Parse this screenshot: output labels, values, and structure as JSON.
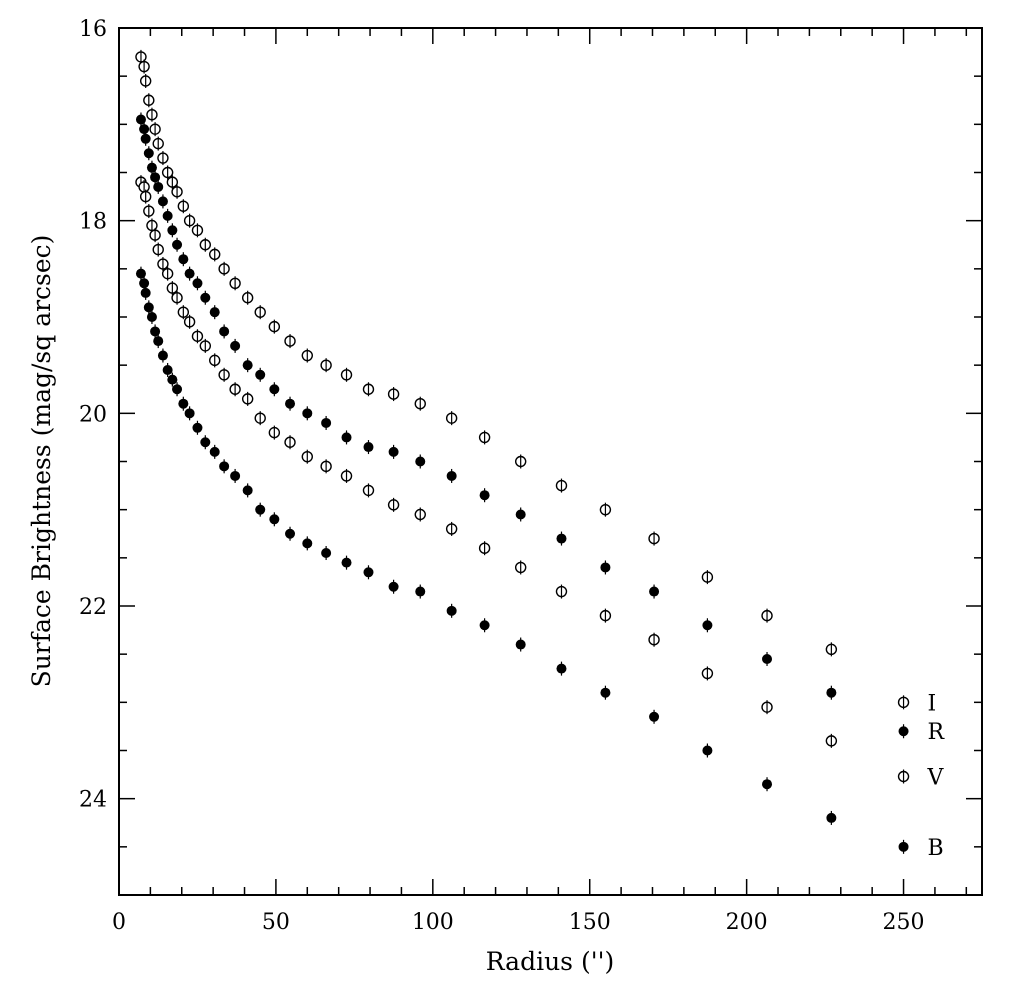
{
  "chart_data": {
    "type": "scatter",
    "title": "",
    "xlabel": "Radius ('')",
    "ylabel": "Surface Brightness (mag/sq arcsec)",
    "xlim": [
      0,
      275
    ],
    "ylim": [
      16,
      25
    ],
    "y_inverted": true,
    "grid": false,
    "legend_position": "bottom-right",
    "x_ticks": [
      0,
      50,
      100,
      150,
      200,
      250
    ],
    "x_tick_labels": [
      "0",
      "50",
      "100",
      "150",
      "200",
      "250"
    ],
    "y_ticks": [
      16,
      18,
      20,
      22,
      24
    ],
    "y_tick_labels": [
      "16",
      "18",
      "20",
      "22",
      "24"
    ],
    "series": [
      {
        "name": "I",
        "marker": "open-circle",
        "x": [
          7,
          8,
          8.5,
          9.5,
          10.5,
          11.5,
          12.5,
          14,
          15.5,
          17,
          18.5,
          20.5,
          22.5,
          25,
          27.5,
          30.5,
          33.5,
          37,
          41,
          45,
          49.5,
          54.5,
          60,
          66,
          72.5,
          79.5,
          87.5,
          96,
          106,
          116.5,
          128,
          141,
          155,
          170.5,
          187.5,
          206.5,
          227
        ],
        "y": [
          16.3,
          16.4,
          16.55,
          16.75,
          16.9,
          17.05,
          17.2,
          17.35,
          17.5,
          17.6,
          17.7,
          17.85,
          18.0,
          18.1,
          18.25,
          18.35,
          18.5,
          18.65,
          18.8,
          18.95,
          19.1,
          19.25,
          19.4,
          19.5,
          19.6,
          19.75,
          19.8,
          19.9,
          20.05,
          20.25,
          20.5,
          20.75,
          21.0,
          21.3,
          21.7,
          22.1,
          22.45
        ]
      },
      {
        "name": "R",
        "marker": "filled-circle",
        "x": [
          7,
          8,
          8.5,
          9.5,
          10.5,
          11.5,
          12.5,
          14,
          15.5,
          17,
          18.5,
          20.5,
          22.5,
          25,
          27.5,
          30.5,
          33.5,
          37,
          41,
          45,
          49.5,
          54.5,
          60,
          66,
          72.5,
          79.5,
          87.5,
          96,
          106,
          116.5,
          128,
          141,
          155,
          170.5,
          187.5,
          206.5,
          227
        ],
        "y": [
          16.95,
          17.05,
          17.15,
          17.3,
          17.45,
          17.55,
          17.65,
          17.8,
          17.95,
          18.1,
          18.25,
          18.4,
          18.55,
          18.65,
          18.8,
          18.95,
          19.15,
          19.3,
          19.5,
          19.6,
          19.75,
          19.9,
          20.0,
          20.1,
          20.25,
          20.35,
          20.4,
          20.5,
          20.65,
          20.85,
          21.05,
          21.3,
          21.6,
          21.85,
          22.2,
          22.55,
          22.9
        ]
      },
      {
        "name": "V",
        "marker": "open-circle",
        "x": [
          7,
          8,
          8.5,
          9.5,
          10.5,
          11.5,
          12.5,
          14,
          15.5,
          17,
          18.5,
          20.5,
          22.5,
          25,
          27.5,
          30.5,
          33.5,
          37,
          41,
          45,
          49.5,
          54.5,
          60,
          66,
          72.5,
          79.5,
          87.5,
          96,
          106,
          116.5,
          128,
          141,
          155,
          170.5,
          187.5,
          206.5,
          227
        ],
        "y": [
          17.6,
          17.65,
          17.75,
          17.9,
          18.05,
          18.15,
          18.3,
          18.45,
          18.55,
          18.7,
          18.8,
          18.95,
          19.05,
          19.2,
          19.3,
          19.45,
          19.6,
          19.75,
          19.85,
          20.05,
          20.2,
          20.3,
          20.45,
          20.55,
          20.65,
          20.8,
          20.95,
          21.05,
          21.2,
          21.4,
          21.6,
          21.85,
          22.1,
          22.35,
          22.7,
          23.05,
          23.4
        ]
      },
      {
        "name": "B",
        "marker": "filled-circle",
        "x": [
          7,
          8,
          8.5,
          9.5,
          10.5,
          11.5,
          12.5,
          14,
          15.5,
          17,
          18.5,
          20.5,
          22.5,
          25,
          27.5,
          30.5,
          33.5,
          37,
          41,
          45,
          49.5,
          54.5,
          60,
          66,
          72.5,
          79.5,
          87.5,
          96,
          106,
          116.5,
          128,
          141,
          155,
          170.5,
          187.5,
          206.5,
          227
        ],
        "y": [
          18.55,
          18.65,
          18.75,
          18.9,
          19.0,
          19.15,
          19.25,
          19.4,
          19.55,
          19.65,
          19.75,
          19.9,
          20.0,
          20.15,
          20.3,
          20.4,
          20.55,
          20.65,
          20.8,
          21.0,
          21.1,
          21.25,
          21.35,
          21.45,
          21.55,
          21.65,
          21.8,
          21.85,
          22.05,
          22.2,
          22.4,
          22.65,
          22.9,
          23.15,
          23.5,
          23.85,
          24.2
        ]
      }
    ]
  }
}
